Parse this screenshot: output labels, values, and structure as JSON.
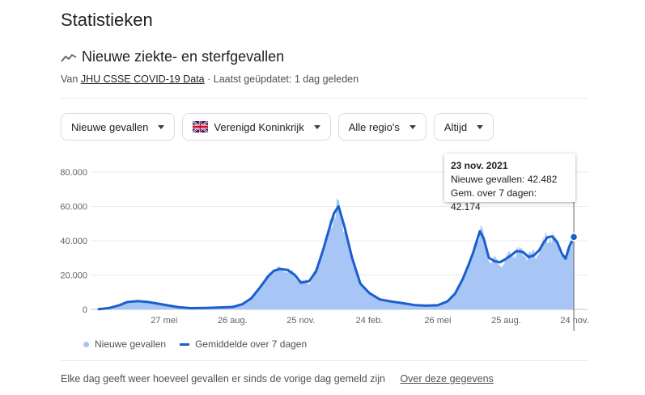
{
  "page": {
    "title": "Statistieken"
  },
  "section": {
    "title": "Nieuwe ziekte- en sterfgevallen",
    "icon": "trending-line-icon",
    "source_prefix": "Van",
    "source_name": "JHU CSSE COVID-19 Data",
    "updated": "· Laatst geüpdatet: 1 dag geleden"
  },
  "filters": [
    {
      "label": "Nieuwe gevallen",
      "icon": "chevron-down-icon"
    },
    {
      "label": "Verenigd Koninkrijk",
      "icon": "uk-flag-icon"
    },
    {
      "label": "Alle regio's",
      "icon": "chevron-down-icon"
    },
    {
      "label": "Altijd",
      "icon": "chevron-down-icon"
    }
  ],
  "tooltip": {
    "date": "23 nov. 2021",
    "cases": "Nieuwe gevallen: 42.482",
    "avg": "Gem. over 7 dagen: 42.174"
  },
  "legend": {
    "cases": "Nieuwe gevallen",
    "avg": "Gemiddelde over 7 dagen"
  },
  "footer": {
    "note": "Elke dag geeft weer hoeveel gevallen er sinds de vorige dag gemeld zijn",
    "link": "Over deze gegevens"
  },
  "colors": {
    "bars": "#a7c5f5",
    "line": "#1a5fce",
    "grid": "#e8eaed"
  },
  "chart_data": {
    "type": "area",
    "x_unit": "date",
    "ylim": [
      0,
      80000
    ],
    "yticks": [
      0,
      20000,
      40000,
      60000,
      80000
    ],
    "ytick_labels": [
      "0",
      "20.000",
      "40.000",
      "60.000",
      "80.000"
    ],
    "xticks": [
      "2020-05-27",
      "2020-08-26",
      "2020-11-25",
      "2021-02-24",
      "2021-05-26",
      "2021-08-25",
      "2021-11-24"
    ],
    "xtick_labels": [
      "27 mei",
      "26 aug.",
      "25 nov.",
      "24 feb.",
      "26 mei",
      "25 aug.",
      "24 nov."
    ],
    "x_range": [
      "2020-03-01",
      "2021-11-24"
    ],
    "series": [
      {
        "name": "Gemiddelde over 7 dagen",
        "style": "line",
        "x": [
          "2020-03-01",
          "2020-03-15",
          "2020-03-29",
          "2020-04-08",
          "2020-04-22",
          "2020-05-06",
          "2020-05-27",
          "2020-06-15",
          "2020-07-01",
          "2020-07-20",
          "2020-08-10",
          "2020-08-26",
          "2020-09-08",
          "2020-09-20",
          "2020-10-01",
          "2020-10-12",
          "2020-10-20",
          "2020-10-28",
          "2020-11-07",
          "2020-11-17",
          "2020-11-25",
          "2020-12-06",
          "2020-12-15",
          "2020-12-24",
          "2021-01-01",
          "2021-01-08",
          "2021-01-14",
          "2021-01-22",
          "2021-02-01",
          "2021-02-12",
          "2021-02-24",
          "2021-03-10",
          "2021-03-25",
          "2021-04-10",
          "2021-04-25",
          "2021-05-10",
          "2021-05-26",
          "2021-06-08",
          "2021-06-18",
          "2021-06-28",
          "2021-07-06",
          "2021-07-12",
          "2021-07-17",
          "2021-07-21",
          "2021-07-26",
          "2021-08-02",
          "2021-08-10",
          "2021-08-17",
          "2021-08-25",
          "2021-09-02",
          "2021-09-08",
          "2021-09-16",
          "2021-09-24",
          "2021-10-01",
          "2021-10-08",
          "2021-10-14",
          "2021-10-19",
          "2021-10-25",
          "2021-11-01",
          "2021-11-07",
          "2021-11-12",
          "2021-11-17",
          "2021-11-23"
        ],
        "values": [
          100,
          800,
          2500,
          4300,
          4800,
          4300,
          2700,
          1300,
          700,
          800,
          1100,
          1400,
          3000,
          6500,
          12500,
          19000,
          22500,
          23500,
          23000,
          20000,
          15500,
          16500,
          22000,
          34000,
          46000,
          56000,
          60000,
          48000,
          30000,
          15000,
          9500,
          5800,
          4600,
          3600,
          2500,
          2200,
          2400,
          4700,
          9200,
          17500,
          26000,
          33000,
          40000,
          45500,
          41500,
          30000,
          28000,
          27500,
          29500,
          32000,
          34000,
          33500,
          30500,
          31500,
          34500,
          39000,
          42000,
          42500,
          39000,
          32500,
          29500,
          36500,
          42200
        ]
      }
    ],
    "tooltip_point": {
      "x": "2021-11-23",
      "cases": 42482,
      "avg": 42174
    }
  }
}
